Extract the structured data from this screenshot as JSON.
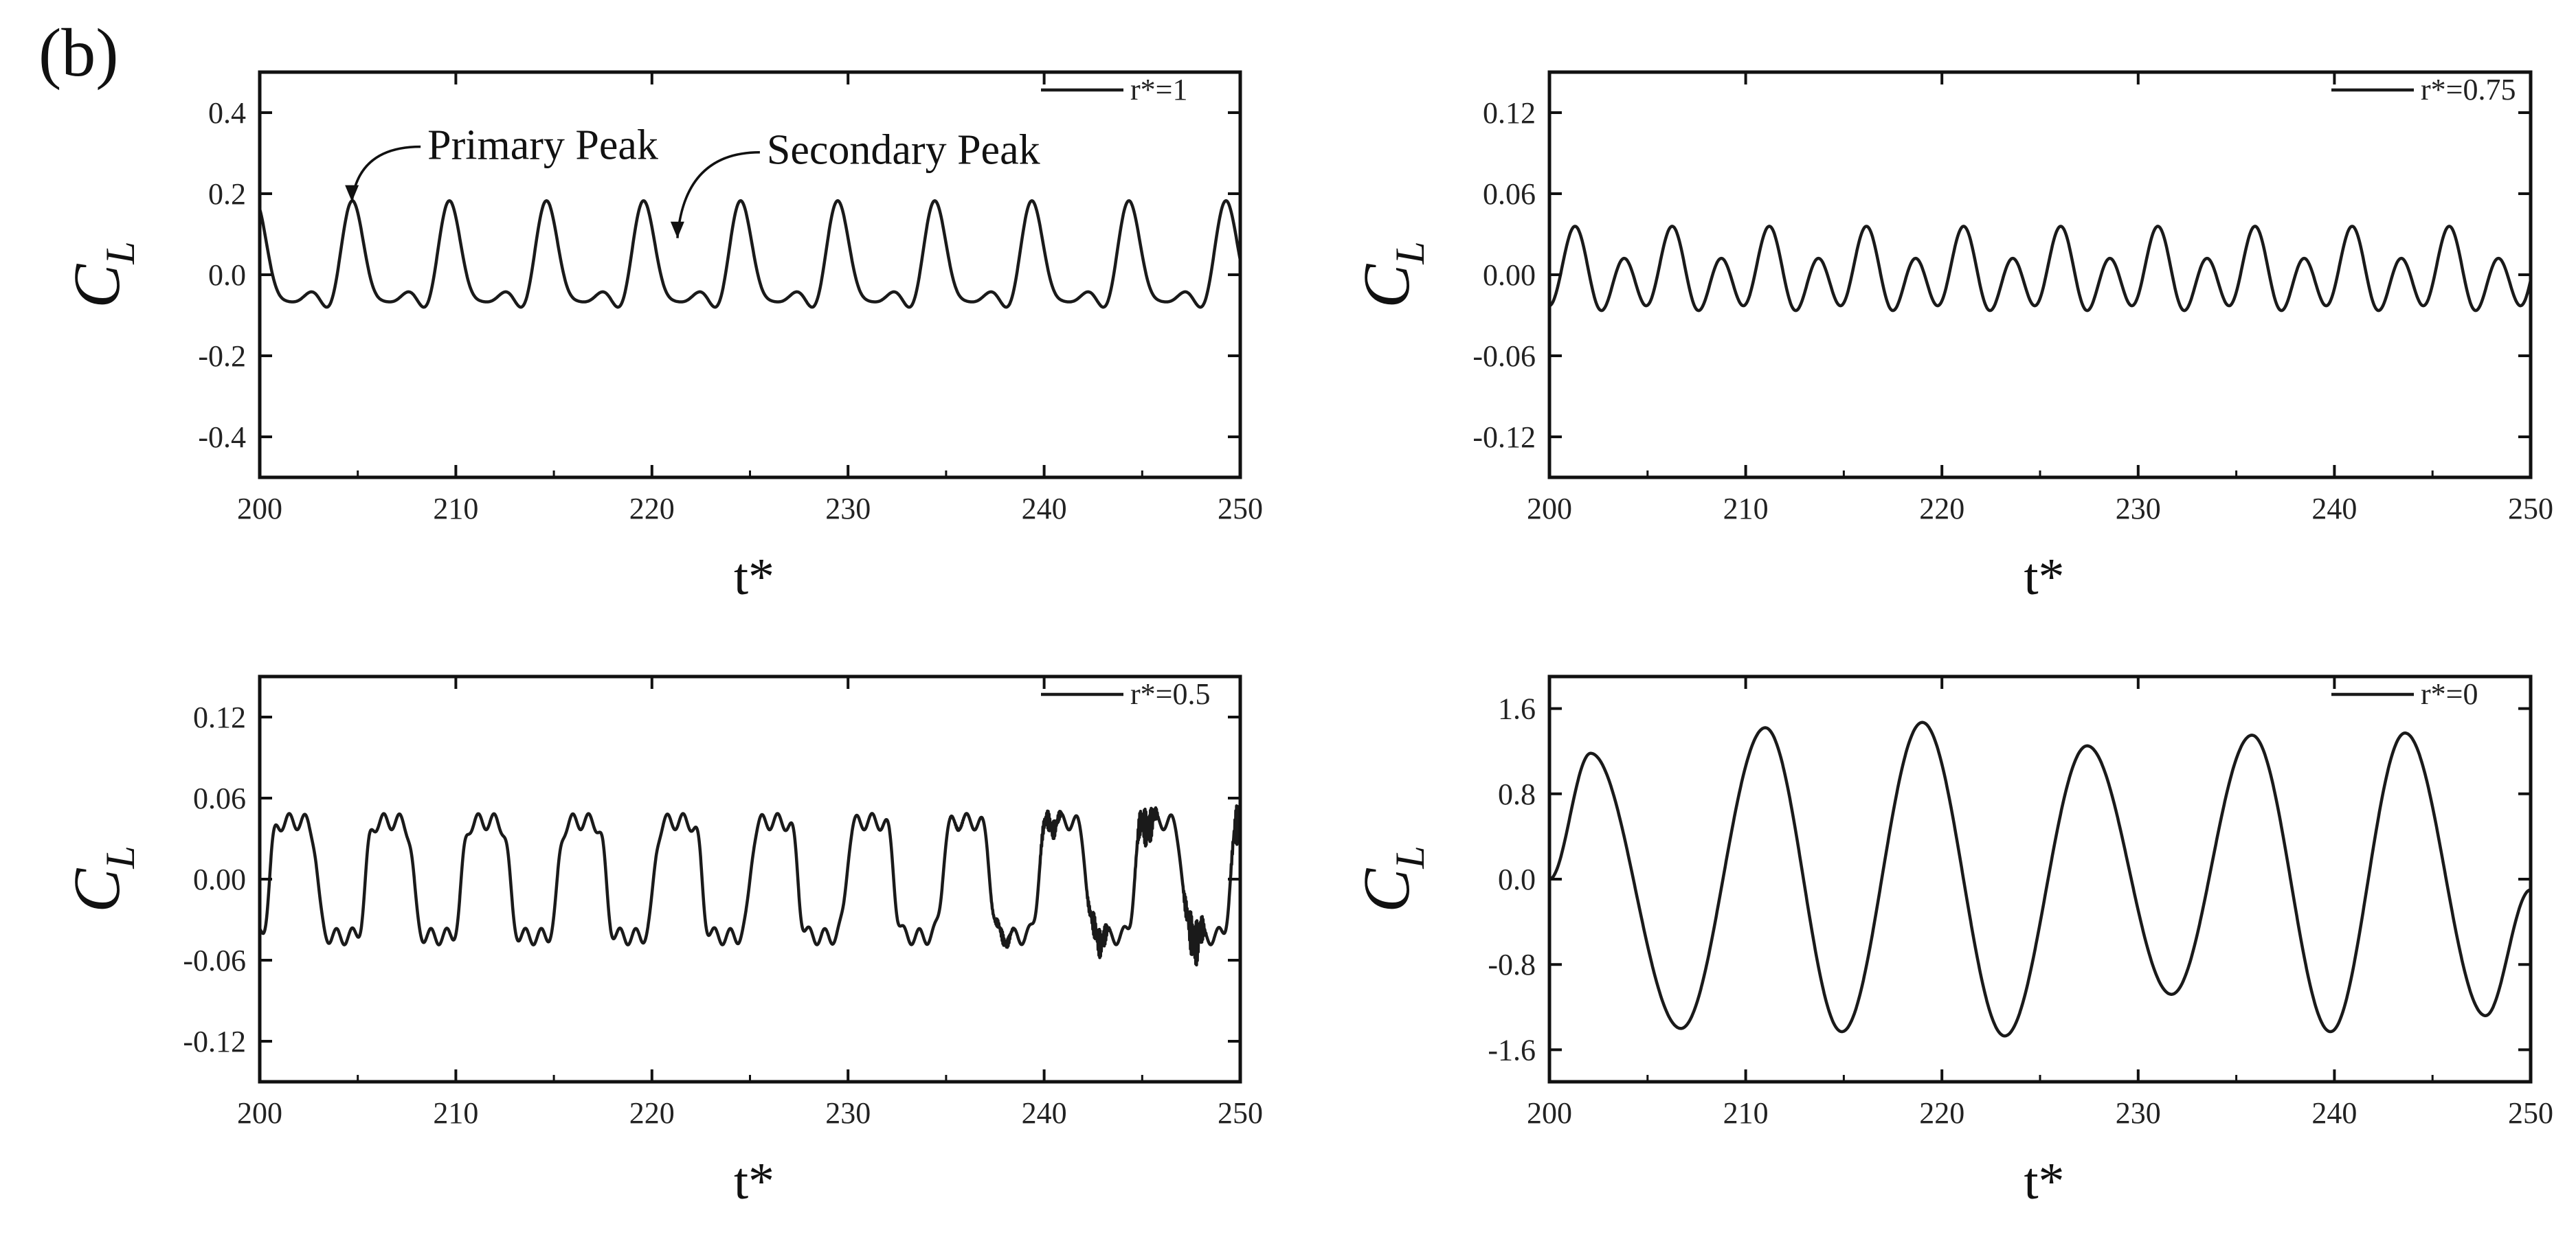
{
  "figure": {
    "panel_label": "(b)"
  },
  "chart_data": [
    {
      "type": "line",
      "xlabel": "t*",
      "ylabel": "C",
      "ylabel_sub": "L",
      "xlim": [
        200,
        250
      ],
      "ylim": [
        -0.5,
        0.5
      ],
      "xticks": [
        "200",
        "210",
        "220",
        "230",
        "240",
        "250"
      ],
      "yticks": [
        "-0.4",
        "-0.2",
        "0.0",
        "0.2",
        "0.4"
      ],
      "ytick_values": [
        -0.4,
        -0.2,
        0.0,
        0.2,
        0.4
      ],
      "series": [
        {
          "name": "r*=1",
          "signal": "twin-peak",
          "period": 4.95,
          "phase": 202.3,
          "primary_peak": 0.16,
          "trough": -0.16
        }
      ],
      "annotations": [
        {
          "text": "Primary Peak",
          "x": 204.7,
          "y": 0.16
        },
        {
          "text": "Secondary Peak",
          "x": 221.3,
          "y": 0.07
        }
      ]
    },
    {
      "type": "line",
      "xlabel": "t*",
      "ylabel": "C",
      "ylabel_sub": "L",
      "xlim": [
        200,
        250
      ],
      "ylim": [
        -0.15,
        0.15
      ],
      "xticks": [
        "200",
        "210",
        "220",
        "230",
        "240",
        "250"
      ],
      "yticks": [
        "-0.12",
        "-0.06",
        "0.00",
        "0.06",
        "0.12"
      ],
      "ytick_values": [
        -0.12,
        -0.06,
        0.0,
        0.06,
        0.12
      ],
      "series": [
        {
          "name": "r*=0.75",
          "signal": "double-frequency",
          "period": 4.95,
          "amplitude": 0.035
        }
      ]
    },
    {
      "type": "line",
      "xlabel": "t*",
      "ylabel": "C",
      "ylabel_sub": "L",
      "xlim": [
        200,
        250
      ],
      "ylim": [
        -0.15,
        0.15
      ],
      "xticks": [
        "200",
        "210",
        "220",
        "230",
        "240",
        "250"
      ],
      "yticks": [
        "-0.12",
        "-0.06",
        "0.00",
        "0.06",
        "0.12"
      ],
      "ytick_values": [
        -0.12,
        -0.06,
        0.0,
        0.06,
        0.12
      ],
      "series": [
        {
          "name": "r*=0.5",
          "signal": "square-like",
          "period": 4.9,
          "high": 0.045,
          "low": -0.045
        }
      ]
    },
    {
      "type": "line",
      "xlabel": "t*",
      "ylabel": "C",
      "ylabel_sub": "L",
      "xlim": [
        200,
        250
      ],
      "ylim": [
        -1.9,
        1.9
      ],
      "xticks": [
        "200",
        "210",
        "220",
        "230",
        "240",
        "250"
      ],
      "yticks": [
        "-1.6",
        "-0.8",
        "0.0",
        "0.8",
        "1.6"
      ],
      "ytick_values": [
        -1.6,
        -0.8,
        0.0,
        0.8,
        1.6
      ],
      "series": [
        {
          "name": "r*=0",
          "signal": "sinusoid",
          "peaks_x": [
            202.1,
            211.0,
            219.0,
            227.4,
            235.8,
            243.6
          ],
          "peaks_y": [
            1.18,
            1.42,
            1.47,
            1.25,
            1.35,
            1.37
          ],
          "troughs_x": [
            206.7,
            214.9,
            223.2,
            231.7,
            239.8,
            247.7
          ],
          "troughs_y": [
            -1.4,
            -1.43,
            -1.47,
            -1.08,
            -1.43,
            -1.28
          ]
        }
      ]
    }
  ]
}
